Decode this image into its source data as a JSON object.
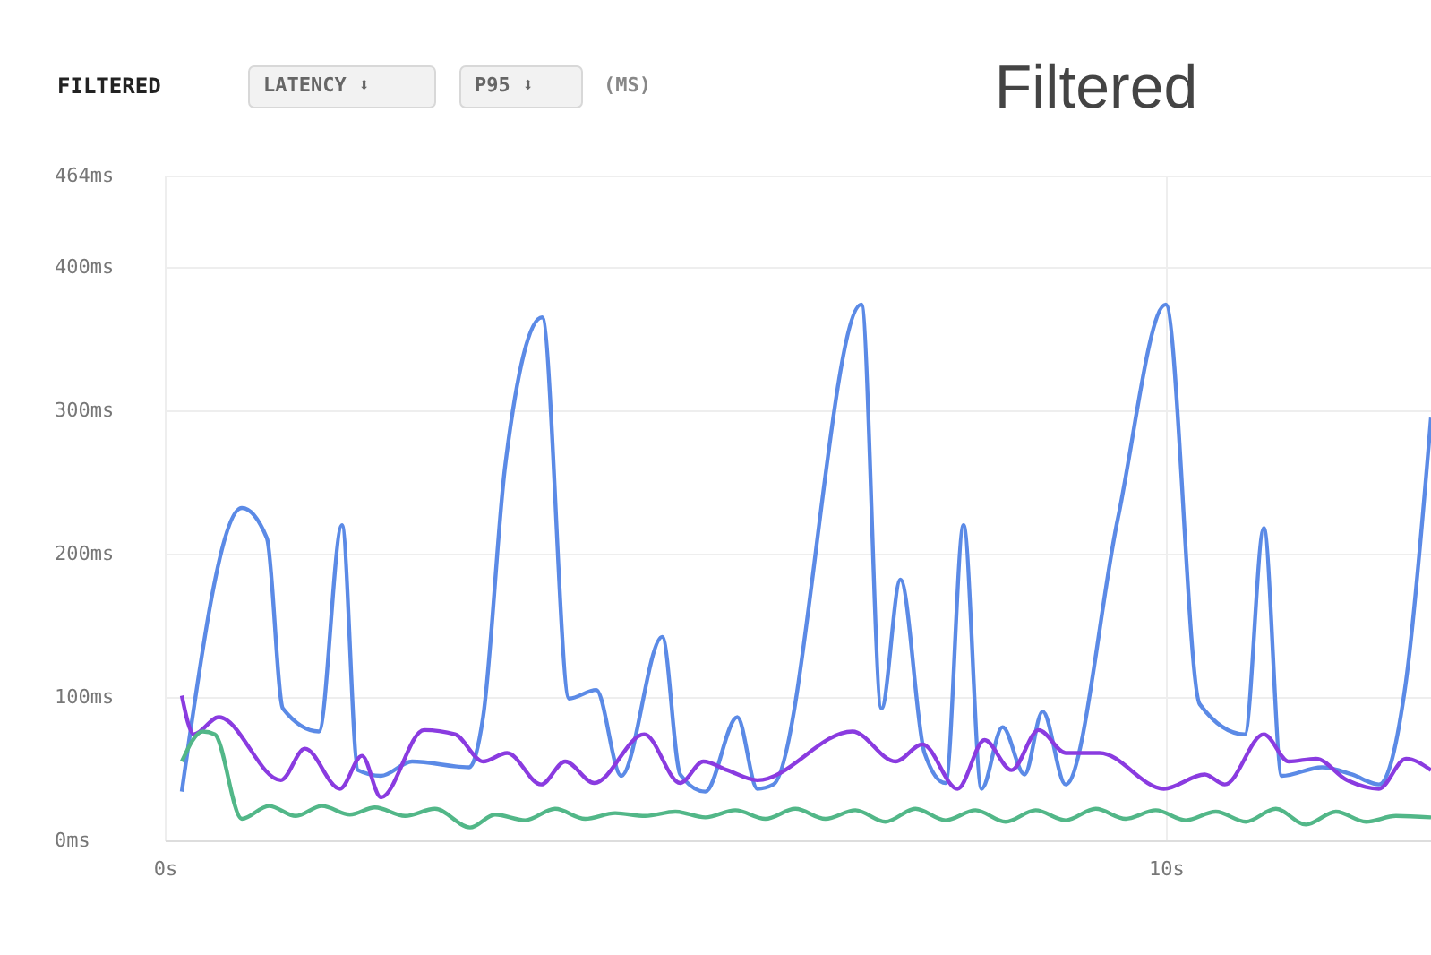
{
  "chart_data": {
    "type": "line",
    "title": "FILTERED",
    "annotations": [
      "LATENCY ⬍",
      "P95 ⬍",
      "(MS)",
      "Filtered"
    ],
    "xlim": [
      0,
      12.65
    ],
    "xticks": [
      {
        "value": 0,
        "label": "0s"
      },
      {
        "value": 10,
        "label": "10s"
      }
    ],
    "ylim": [
      0,
      464
    ],
    "yticks": [
      {
        "value": 0,
        "label": "0ms"
      },
      {
        "value": 100,
        "label": "100ms"
      },
      {
        "value": 200,
        "label": "200ms"
      },
      {
        "value": 300,
        "label": "300ms"
      },
      {
        "value": 400,
        "label": "400ms"
      },
      {
        "value": 464,
        "label": "464ms"
      }
    ],
    "grid": true,
    "legend": false,
    "marker": "none",
    "line_style": "solid",
    "series": [
      {
        "color": "#5b8ae6",
        "x": [
          0.17,
          0.77,
          1.02,
          1.18,
          1.54,
          1.77,
          1.93,
          2.16,
          2.47,
          3.04,
          3.18,
          3.4,
          3.77,
          4.04,
          4.31,
          4.56,
          4.97,
          5.15,
          5.4,
          5.72,
          5.92,
          6.08,
          6.96,
          7.16,
          7.35,
          7.59,
          7.8,
          7.98,
          8.16,
          8.37,
          8.59,
          8.77,
          9.0,
          9.52,
          10.0,
          10.34,
          10.79,
          10.98,
          11.16,
          11.56,
          11.86,
          12.13,
          12.4,
          12.65
        ],
        "values": [
          34,
          232,
          211,
          92,
          76,
          220,
          49,
          45,
          55,
          51,
          86,
          261,
          365,
          99,
          105,
          45,
          142,
          46,
          34,
          86,
          36,
          39,
          374,
          92,
          182,
          61,
          40,
          220,
          36,
          79,
          46,
          90,
          39,
          224,
          374,
          95,
          74,
          218,
          45,
          51,
          46,
          39,
          111,
          295
        ]
      },
      {
        "color": "#8a3be0",
        "x": [
          0.17,
          0.29,
          0.54,
          1.16,
          1.4,
          1.75,
          1.97,
          2.16,
          2.59,
          2.9,
          3.18,
          3.42,
          3.76,
          4.0,
          4.29,
          4.79,
          5.15,
          5.38,
          5.62,
          5.92,
          6.87,
          7.3,
          7.57,
          7.92,
          8.19,
          8.46,
          8.73,
          9.0,
          9.34,
          9.98,
          10.39,
          10.59,
          10.98,
          11.23,
          11.5,
          11.81,
          12.13,
          12.4,
          12.65
        ],
        "values": [
          101,
          74,
          86,
          42,
          64,
          36,
          59,
          30,
          77,
          74,
          55,
          61,
          39,
          55,
          40,
          74,
          40,
          55,
          49,
          42,
          76,
          55,
          67,
          36,
          70,
          49,
          77,
          61,
          61,
          36,
          46,
          39,
          74,
          55,
          57,
          42,
          36,
          57,
          49
        ]
      },
      {
        "color": "#52b788",
        "x": [
          0.17,
          0.38,
          0.5,
          0.77,
          1.04,
          1.31,
          1.57,
          1.85,
          2.1,
          2.4,
          2.7,
          3.05,
          3.3,
          3.6,
          3.9,
          4.2,
          4.5,
          4.8,
          5.1,
          5.4,
          5.7,
          6.0,
          6.3,
          6.6,
          6.9,
          7.2,
          7.5,
          7.8,
          8.1,
          8.4,
          8.7,
          9.0,
          9.3,
          9.6,
          9.9,
          10.2,
          10.5,
          10.8,
          11.1,
          11.4,
          11.7,
          12.0,
          12.3,
          12.65
        ],
        "values": [
          55,
          76,
          74,
          15,
          24,
          17,
          24,
          18,
          23,
          17,
          22,
          9,
          18,
          14,
          22,
          15,
          19,
          17,
          20,
          16,
          21,
          15,
          22,
          15,
          21,
          13,
          22,
          14,
          21,
          13,
          21,
          14,
          22,
          15,
          21,
          14,
          20,
          13,
          22,
          11,
          20,
          13,
          17,
          16
        ]
      }
    ]
  }
}
